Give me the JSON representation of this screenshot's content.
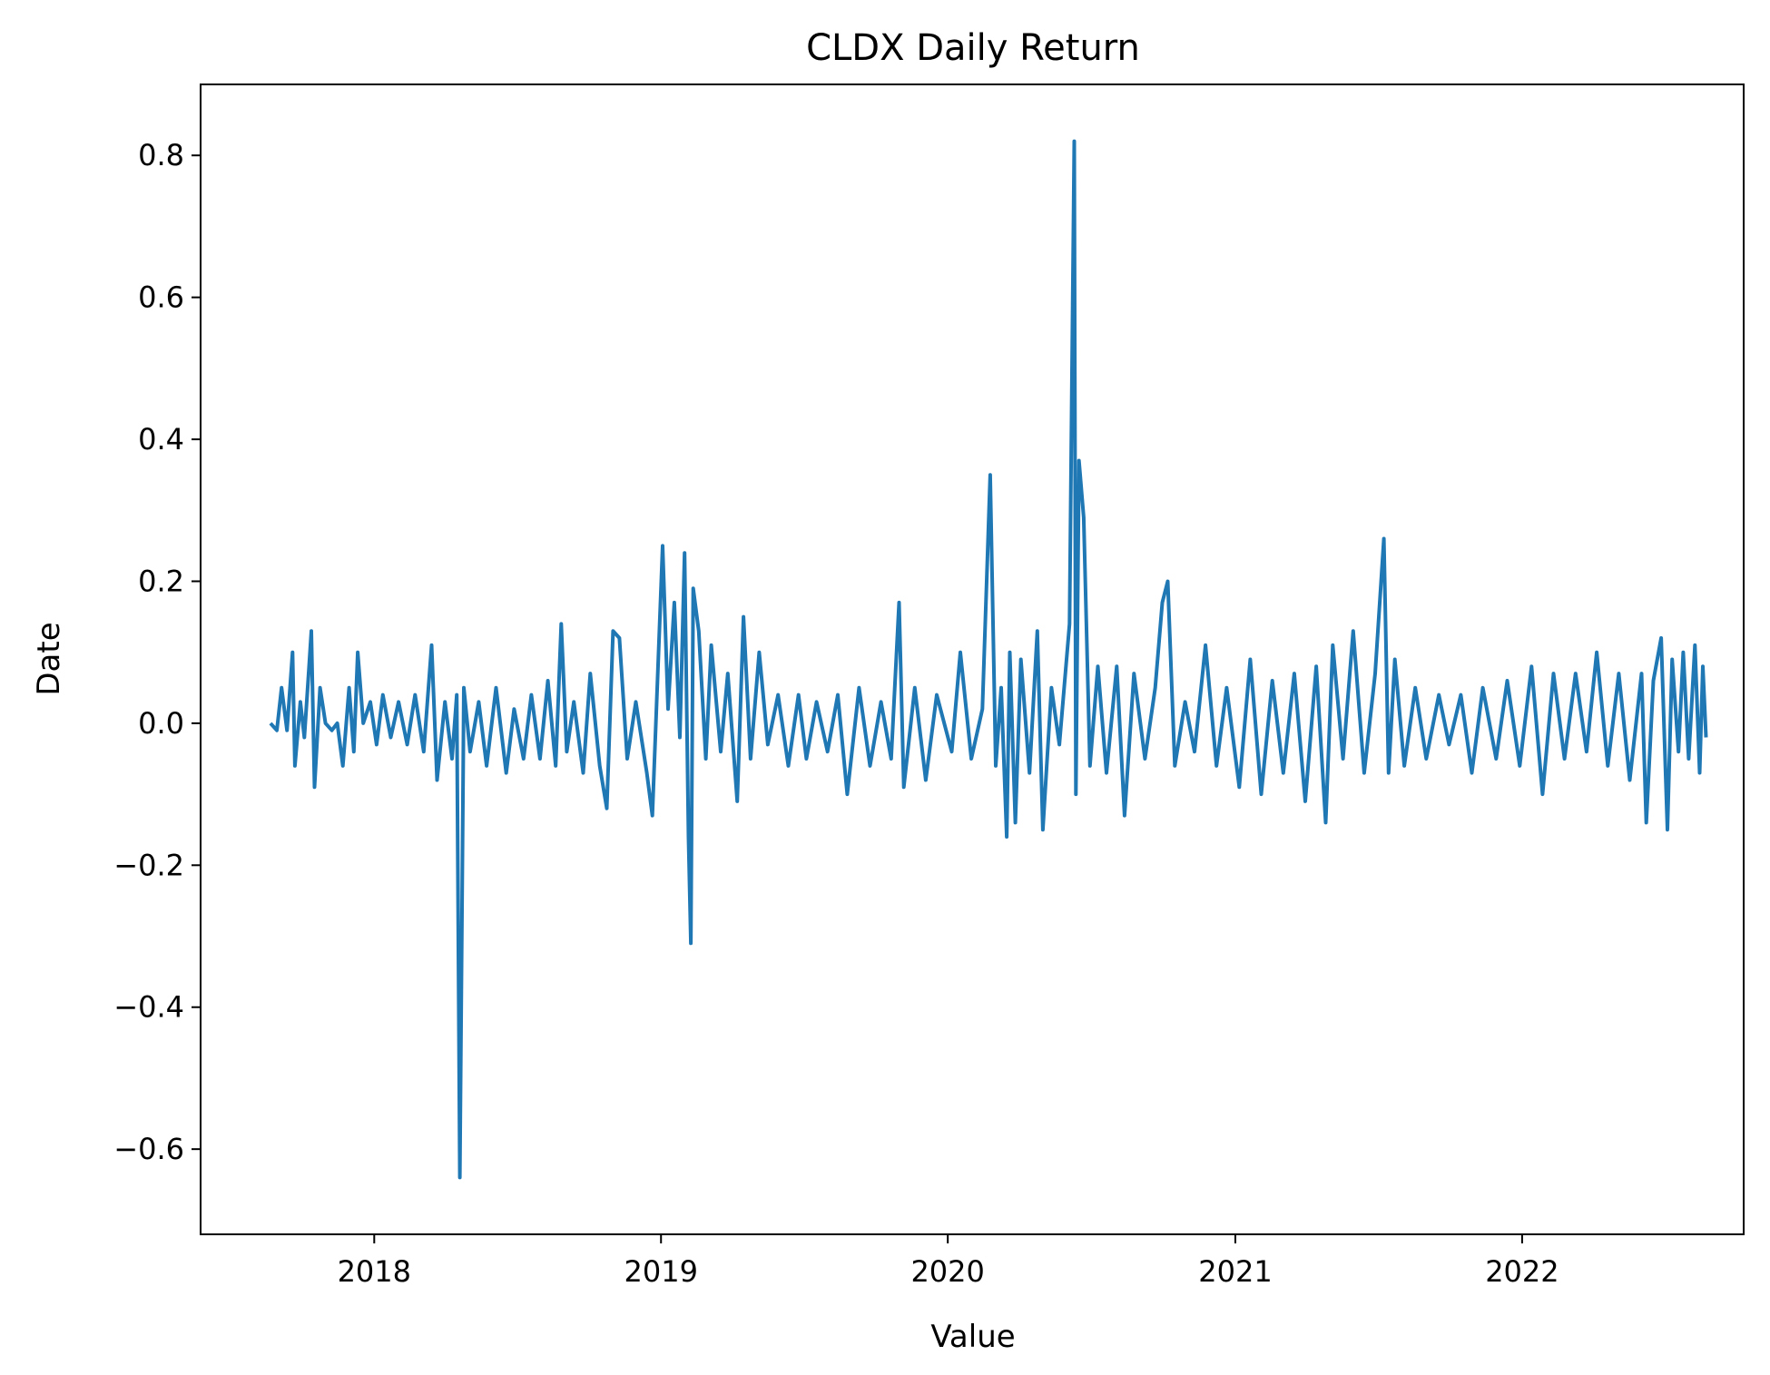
{
  "chart_data": {
    "type": "line",
    "title": "CLDX Daily Return",
    "xlabel": "Value",
    "ylabel": "Date",
    "x_ticks": [
      "2018",
      "2019",
      "2020",
      "2021",
      "2022"
    ],
    "y_ticks": [
      "−0.6",
      "−0.4",
      "−0.2",
      "0.0",
      "0.2",
      "0.4",
      "0.6",
      "0.8"
    ],
    "x_range": [
      "2017-05-25",
      "2022-10-10"
    ],
    "y_range": [
      -0.72,
      0.9
    ],
    "grid": false,
    "legend": "none",
    "series": [
      {
        "color": "#1f77b4",
        "points": [
          [
            "2017-08-22",
            0.0
          ],
          [
            "2017-08-30",
            -0.01
          ],
          [
            "2017-09-05",
            0.05
          ],
          [
            "2017-09-12",
            -0.01
          ],
          [
            "2017-09-19",
            0.1
          ],
          [
            "2017-09-22",
            -0.06
          ],
          [
            "2017-09-29",
            0.03
          ],
          [
            "2017-10-04",
            -0.02
          ],
          [
            "2017-10-10",
            0.08
          ],
          [
            "2017-10-13",
            0.13
          ],
          [
            "2017-10-17",
            -0.09
          ],
          [
            "2017-10-24",
            0.05
          ],
          [
            "2017-10-31",
            0.0
          ],
          [
            "2017-11-08",
            -0.01
          ],
          [
            "2017-11-15",
            0.0
          ],
          [
            "2017-11-22",
            -0.06
          ],
          [
            "2017-11-30",
            0.05
          ],
          [
            "2017-12-06",
            -0.04
          ],
          [
            "2017-12-11",
            0.1
          ],
          [
            "2017-12-18",
            0.0
          ],
          [
            "2017-12-27",
            0.03
          ],
          [
            "2018-01-04",
            -0.03
          ],
          [
            "2018-01-12",
            0.04
          ],
          [
            "2018-01-22",
            -0.02
          ],
          [
            "2018-02-01",
            0.03
          ],
          [
            "2018-02-12",
            -0.03
          ],
          [
            "2018-02-22",
            0.04
          ],
          [
            "2018-03-05",
            -0.04
          ],
          [
            "2018-03-15",
            0.11
          ],
          [
            "2018-03-22",
            -0.08
          ],
          [
            "2018-04-01",
            0.03
          ],
          [
            "2018-04-10",
            -0.05
          ],
          [
            "2018-04-16",
            0.04
          ],
          [
            "2018-04-20",
            -0.64
          ],
          [
            "2018-04-25",
            0.05
          ],
          [
            "2018-05-03",
            -0.04
          ],
          [
            "2018-05-14",
            0.03
          ],
          [
            "2018-05-24",
            -0.06
          ],
          [
            "2018-06-05",
            0.05
          ],
          [
            "2018-06-18",
            -0.07
          ],
          [
            "2018-06-28",
            0.02
          ],
          [
            "2018-07-10",
            -0.05
          ],
          [
            "2018-07-20",
            0.04
          ],
          [
            "2018-07-31",
            -0.05
          ],
          [
            "2018-08-10",
            0.06
          ],
          [
            "2018-08-20",
            -0.06
          ],
          [
            "2018-08-27",
            0.14
          ],
          [
            "2018-09-03",
            -0.04
          ],
          [
            "2018-09-12",
            0.03
          ],
          [
            "2018-09-24",
            -0.07
          ],
          [
            "2018-10-03",
            0.07
          ],
          [
            "2018-10-15",
            -0.06
          ],
          [
            "2018-10-24",
            -0.12
          ],
          [
            "2018-11-01",
            0.13
          ],
          [
            "2018-11-09",
            0.12
          ],
          [
            "2018-11-19",
            -0.05
          ],
          [
            "2018-11-30",
            0.03
          ],
          [
            "2018-12-14",
            -0.07
          ],
          [
            "2018-12-21",
            -0.13
          ],
          [
            "2019-01-03",
            0.25
          ],
          [
            "2019-01-10",
            0.02
          ],
          [
            "2019-01-18",
            0.17
          ],
          [
            "2019-01-25",
            -0.02
          ],
          [
            "2019-01-31",
            0.24
          ],
          [
            "2019-02-05",
            -0.16
          ],
          [
            "2019-02-08",
            -0.31
          ],
          [
            "2019-02-11",
            0.19
          ],
          [
            "2019-02-18",
            0.13
          ],
          [
            "2019-02-27",
            -0.05
          ],
          [
            "2019-03-06",
            0.11
          ],
          [
            "2019-03-18",
            -0.04
          ],
          [
            "2019-03-27",
            0.07
          ],
          [
            "2019-04-08",
            -0.11
          ],
          [
            "2019-04-16",
            0.15
          ],
          [
            "2019-04-25",
            -0.05
          ],
          [
            "2019-05-06",
            0.1
          ],
          [
            "2019-05-17",
            -0.03
          ],
          [
            "2019-05-30",
            0.04
          ],
          [
            "2019-06-12",
            -0.06
          ],
          [
            "2019-06-25",
            0.04
          ],
          [
            "2019-07-05",
            -0.05
          ],
          [
            "2019-07-18",
            0.03
          ],
          [
            "2019-08-01",
            -0.04
          ],
          [
            "2019-08-14",
            0.04
          ],
          [
            "2019-08-26",
            -0.1
          ],
          [
            "2019-09-10",
            0.05
          ],
          [
            "2019-09-24",
            -0.06
          ],
          [
            "2019-10-08",
            0.03
          ],
          [
            "2019-10-21",
            -0.05
          ],
          [
            "2019-10-31",
            0.17
          ],
          [
            "2019-11-06",
            -0.09
          ],
          [
            "2019-11-20",
            0.05
          ],
          [
            "2019-12-04",
            -0.08
          ],
          [
            "2019-12-18",
            0.04
          ],
          [
            "2020-01-06",
            -0.04
          ],
          [
            "2020-01-17",
            0.1
          ],
          [
            "2020-01-31",
            -0.05
          ],
          [
            "2020-02-14",
            0.02
          ],
          [
            "2020-02-24",
            0.35
          ],
          [
            "2020-03-02",
            -0.06
          ],
          [
            "2020-03-09",
            0.05
          ],
          [
            "2020-03-16",
            -0.16
          ],
          [
            "2020-03-20",
            0.1
          ],
          [
            "2020-03-27",
            -0.14
          ],
          [
            "2020-04-03",
            0.09
          ],
          [
            "2020-04-14",
            -0.07
          ],
          [
            "2020-04-24",
            0.13
          ],
          [
            "2020-05-01",
            -0.15
          ],
          [
            "2020-05-12",
            0.05
          ],
          [
            "2020-05-22",
            -0.03
          ],
          [
            "2020-06-04",
            0.14
          ],
          [
            "2020-06-10",
            0.82
          ],
          [
            "2020-06-12",
            -0.1
          ],
          [
            "2020-06-16",
            0.37
          ],
          [
            "2020-06-22",
            0.29
          ],
          [
            "2020-06-30",
            -0.06
          ],
          [
            "2020-07-10",
            0.08
          ],
          [
            "2020-07-21",
            -0.07
          ],
          [
            "2020-08-03",
            0.08
          ],
          [
            "2020-08-13",
            -0.13
          ],
          [
            "2020-08-25",
            0.07
          ],
          [
            "2020-09-08",
            -0.05
          ],
          [
            "2020-09-21",
            0.05
          ],
          [
            "2020-09-30",
            0.17
          ],
          [
            "2020-10-07",
            0.2
          ],
          [
            "2020-10-16",
            -0.06
          ],
          [
            "2020-10-29",
            0.03
          ],
          [
            "2020-11-10",
            -0.04
          ],
          [
            "2020-11-24",
            0.11
          ],
          [
            "2020-12-08",
            -0.06
          ],
          [
            "2020-12-21",
            0.05
          ],
          [
            "2021-01-06",
            -0.09
          ],
          [
            "2021-01-20",
            0.09
          ],
          [
            "2021-02-03",
            -0.1
          ],
          [
            "2021-02-17",
            0.06
          ],
          [
            "2021-03-03",
            -0.07
          ],
          [
            "2021-03-17",
            0.07
          ],
          [
            "2021-03-31",
            -0.11
          ],
          [
            "2021-04-14",
            0.08
          ],
          [
            "2021-04-26",
            -0.14
          ],
          [
            "2021-05-05",
            0.11
          ],
          [
            "2021-05-18",
            -0.05
          ],
          [
            "2021-05-31",
            0.13
          ],
          [
            "2021-06-14",
            -0.07
          ],
          [
            "2021-06-28",
            0.07
          ],
          [
            "2021-07-09",
            0.26
          ],
          [
            "2021-07-15",
            -0.07
          ],
          [
            "2021-07-23",
            0.09
          ],
          [
            "2021-08-04",
            -0.06
          ],
          [
            "2021-08-18",
            0.05
          ],
          [
            "2021-09-01",
            -0.05
          ],
          [
            "2021-09-17",
            0.04
          ],
          [
            "2021-09-30",
            -0.03
          ],
          [
            "2021-10-15",
            0.04
          ],
          [
            "2021-10-29",
            -0.07
          ],
          [
            "2021-11-12",
            0.05
          ],
          [
            "2021-11-29",
            -0.05
          ],
          [
            "2021-12-13",
            0.06
          ],
          [
            "2021-12-29",
            -0.06
          ],
          [
            "2022-01-13",
            0.08
          ],
          [
            "2022-01-27",
            -0.1
          ],
          [
            "2022-02-10",
            0.07
          ],
          [
            "2022-02-24",
            -0.05
          ],
          [
            "2022-03-10",
            0.07
          ],
          [
            "2022-03-24",
            -0.04
          ],
          [
            "2022-04-06",
            0.1
          ],
          [
            "2022-04-20",
            -0.06
          ],
          [
            "2022-05-04",
            0.07
          ],
          [
            "2022-05-18",
            -0.08
          ],
          [
            "2022-06-02",
            0.07
          ],
          [
            "2022-06-08",
            -0.14
          ],
          [
            "2022-06-17",
            0.06
          ],
          [
            "2022-06-27",
            0.12
          ],
          [
            "2022-07-05",
            -0.15
          ],
          [
            "2022-07-11",
            0.09
          ],
          [
            "2022-07-19",
            -0.04
          ],
          [
            "2022-07-25",
            0.1
          ],
          [
            "2022-08-01",
            -0.05
          ],
          [
            "2022-08-09",
            0.11
          ],
          [
            "2022-08-15",
            -0.07
          ],
          [
            "2022-08-19",
            0.08
          ],
          [
            "2022-08-23",
            -0.02
          ]
        ]
      }
    ]
  }
}
